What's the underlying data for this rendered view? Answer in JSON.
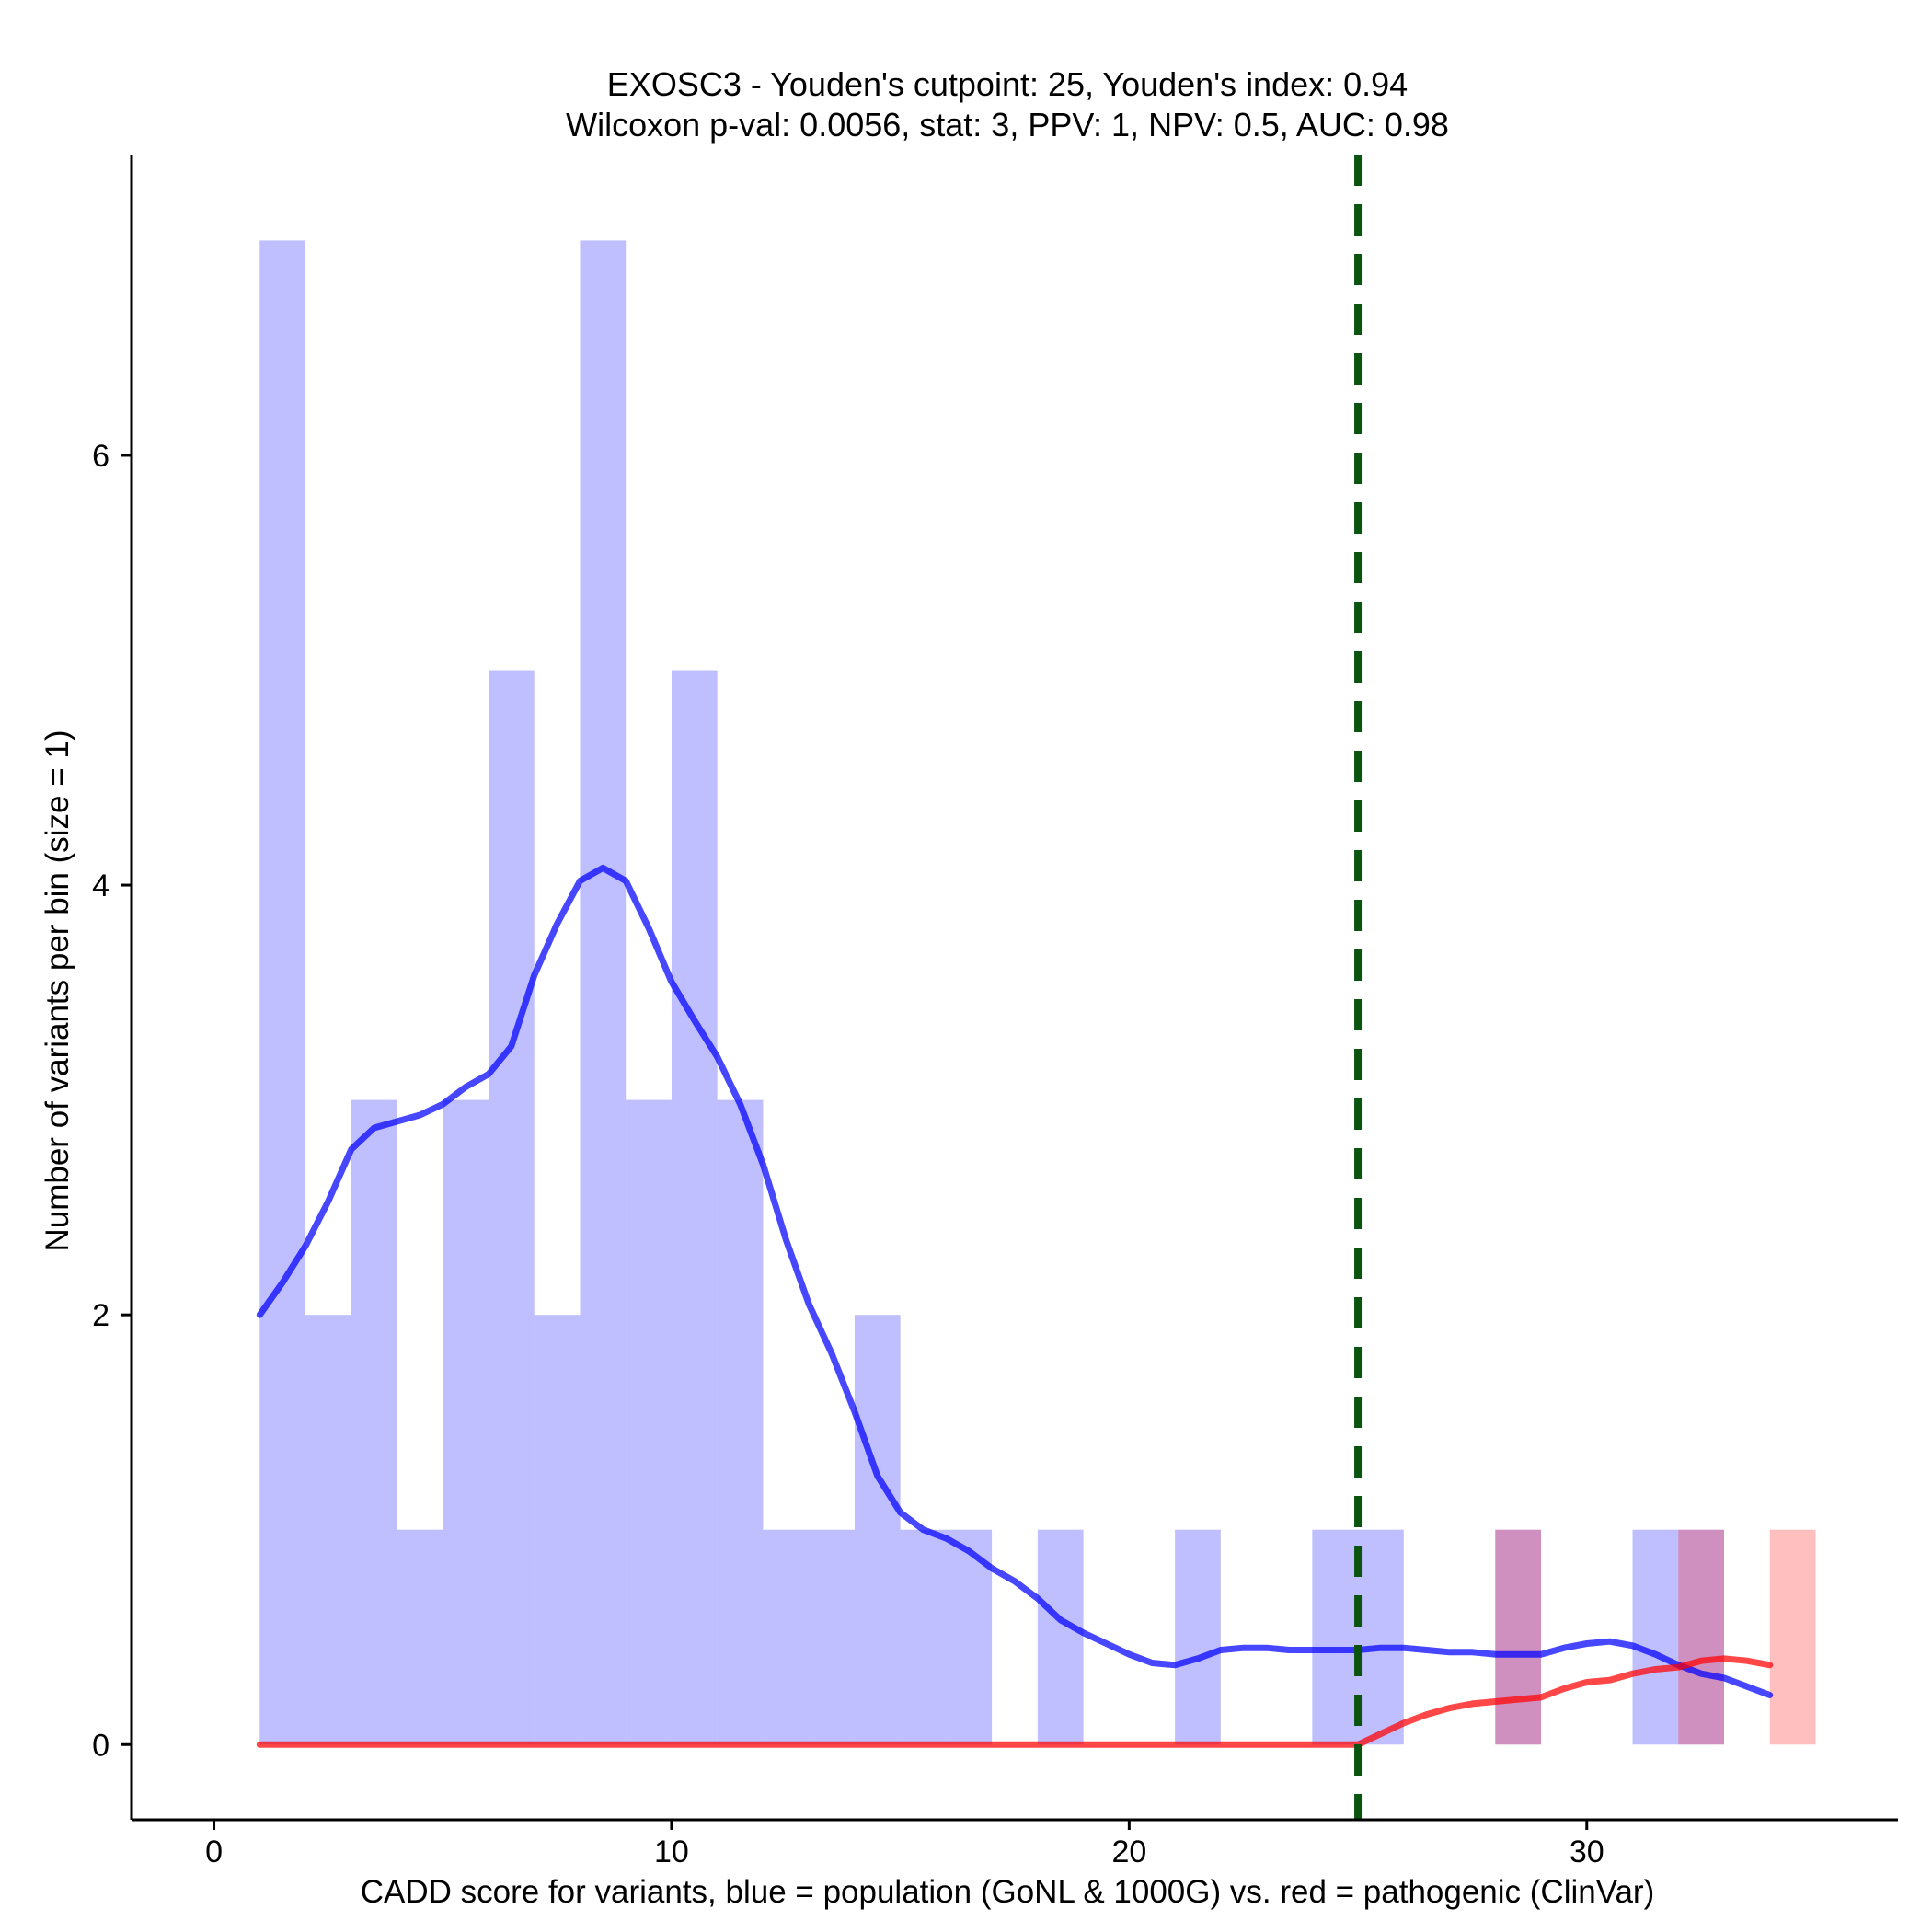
{
  "chart_data": {
    "type": "bar",
    "title_line1": "EXOSC3 - Youden's cutpoint: 25, Youden's index: 0.94",
    "title_line2": "Wilcoxon p-val: 0.0056, stat: 3, PPV: 1, NPV: 0.5, AUC: 0.98",
    "xlabel": "CADD score for variants, blue = population (GoNL & 1000G) vs. red = pathogenic (ClinVar)",
    "ylabel": "Number of variants per bin (size = 1)",
    "xlim": [
      -1.8,
      36.8
    ],
    "ylim": [
      -0.35,
      7.4
    ],
    "x_ticks": [
      0,
      10,
      20,
      30
    ],
    "y_ticks": [
      0,
      2,
      4,
      6
    ],
    "cutpoint": 25,
    "bin_width": 1,
    "series": [
      {
        "name": "population",
        "color": "#0000ff",
        "bins": [
          {
            "x0": 1,
            "count": 7
          },
          {
            "x0": 2,
            "count": 2
          },
          {
            "x0": 3,
            "count": 3
          },
          {
            "x0": 4,
            "count": 1
          },
          {
            "x0": 5,
            "count": 3
          },
          {
            "x0": 6,
            "count": 5
          },
          {
            "x0": 7,
            "count": 2
          },
          {
            "x0": 8,
            "count": 7
          },
          {
            "x0": 9,
            "count": 3
          },
          {
            "x0": 10,
            "count": 5
          },
          {
            "x0": 11,
            "count": 3
          },
          {
            "x0": 12,
            "count": 1
          },
          {
            "x0": 13,
            "count": 1
          },
          {
            "x0": 14,
            "count": 2
          },
          {
            "x0": 15,
            "count": 1
          },
          {
            "x0": 16,
            "count": 1
          },
          {
            "x0": 18,
            "count": 1
          },
          {
            "x0": 21,
            "count": 1
          },
          {
            "x0": 24,
            "count": 1
          },
          {
            "x0": 25,
            "count": 1
          },
          {
            "x0": 28,
            "count": 1
          },
          {
            "x0": 31,
            "count": 1
          },
          {
            "x0": 32,
            "count": 1
          }
        ],
        "density": [
          [
            1,
            2.0
          ],
          [
            1.5,
            2.15
          ],
          [
            2,
            2.32
          ],
          [
            2.5,
            2.53
          ],
          [
            3,
            2.77
          ],
          [
            3.5,
            2.87
          ],
          [
            4,
            2.9
          ],
          [
            4.5,
            2.93
          ],
          [
            5,
            2.98
          ],
          [
            5.5,
            3.06
          ],
          [
            6,
            3.12
          ],
          [
            6.5,
            3.25
          ],
          [
            7,
            3.58
          ],
          [
            7.5,
            3.82
          ],
          [
            8,
            4.02
          ],
          [
            8.5,
            4.08
          ],
          [
            9,
            4.02
          ],
          [
            9.5,
            3.8
          ],
          [
            10,
            3.55
          ],
          [
            10.5,
            3.37
          ],
          [
            11,
            3.2
          ],
          [
            11.5,
            2.98
          ],
          [
            12,
            2.7
          ],
          [
            12.5,
            2.35
          ],
          [
            13,
            2.05
          ],
          [
            13.5,
            1.82
          ],
          [
            14,
            1.55
          ],
          [
            14.5,
            1.25
          ],
          [
            15,
            1.08
          ],
          [
            15.5,
            1.0
          ],
          [
            16,
            0.96
          ],
          [
            16.5,
            0.9
          ],
          [
            17,
            0.82
          ],
          [
            17.5,
            0.76
          ],
          [
            18,
            0.68
          ],
          [
            18.5,
            0.58
          ],
          [
            19,
            0.52
          ],
          [
            19.5,
            0.47
          ],
          [
            20,
            0.42
          ],
          [
            20.5,
            0.38
          ],
          [
            21,
            0.37
          ],
          [
            21.5,
            0.4
          ],
          [
            22,
            0.44
          ],
          [
            22.5,
            0.45
          ],
          [
            23,
            0.45
          ],
          [
            23.5,
            0.44
          ],
          [
            24,
            0.44
          ],
          [
            24.5,
            0.44
          ],
          [
            25,
            0.44
          ],
          [
            25.5,
            0.45
          ],
          [
            26,
            0.45
          ],
          [
            26.5,
            0.44
          ],
          [
            27,
            0.43
          ],
          [
            27.5,
            0.43
          ],
          [
            28,
            0.42
          ],
          [
            28.5,
            0.42
          ],
          [
            29,
            0.42
          ],
          [
            29.5,
            0.45
          ],
          [
            30,
            0.47
          ],
          [
            30.5,
            0.48
          ],
          [
            31,
            0.46
          ],
          [
            31.5,
            0.42
          ],
          [
            32,
            0.37
          ],
          [
            32.5,
            0.33
          ],
          [
            33,
            0.31
          ],
          [
            33.5,
            0.27
          ],
          [
            34,
            0.23
          ]
        ]
      },
      {
        "name": "pathogenic",
        "color": "#ff0000",
        "bins": [
          {
            "x0": 28,
            "count": 1
          },
          {
            "x0": 32,
            "count": 1
          },
          {
            "x0": 34,
            "count": 1
          }
        ],
        "density": [
          [
            1,
            0
          ],
          [
            25,
            0
          ],
          [
            25.5,
            0.05
          ],
          [
            26,
            0.1
          ],
          [
            26.5,
            0.14
          ],
          [
            27,
            0.17
          ],
          [
            27.5,
            0.19
          ],
          [
            28,
            0.2
          ],
          [
            28.5,
            0.21
          ],
          [
            29,
            0.22
          ],
          [
            29.5,
            0.26
          ],
          [
            30,
            0.29
          ],
          [
            30.5,
            0.3
          ],
          [
            31,
            0.33
          ],
          [
            31.5,
            0.35
          ],
          [
            32,
            0.36
          ],
          [
            32.5,
            0.39
          ],
          [
            33,
            0.4
          ],
          [
            33.5,
            0.39
          ],
          [
            34,
            0.37
          ]
        ]
      }
    ]
  }
}
